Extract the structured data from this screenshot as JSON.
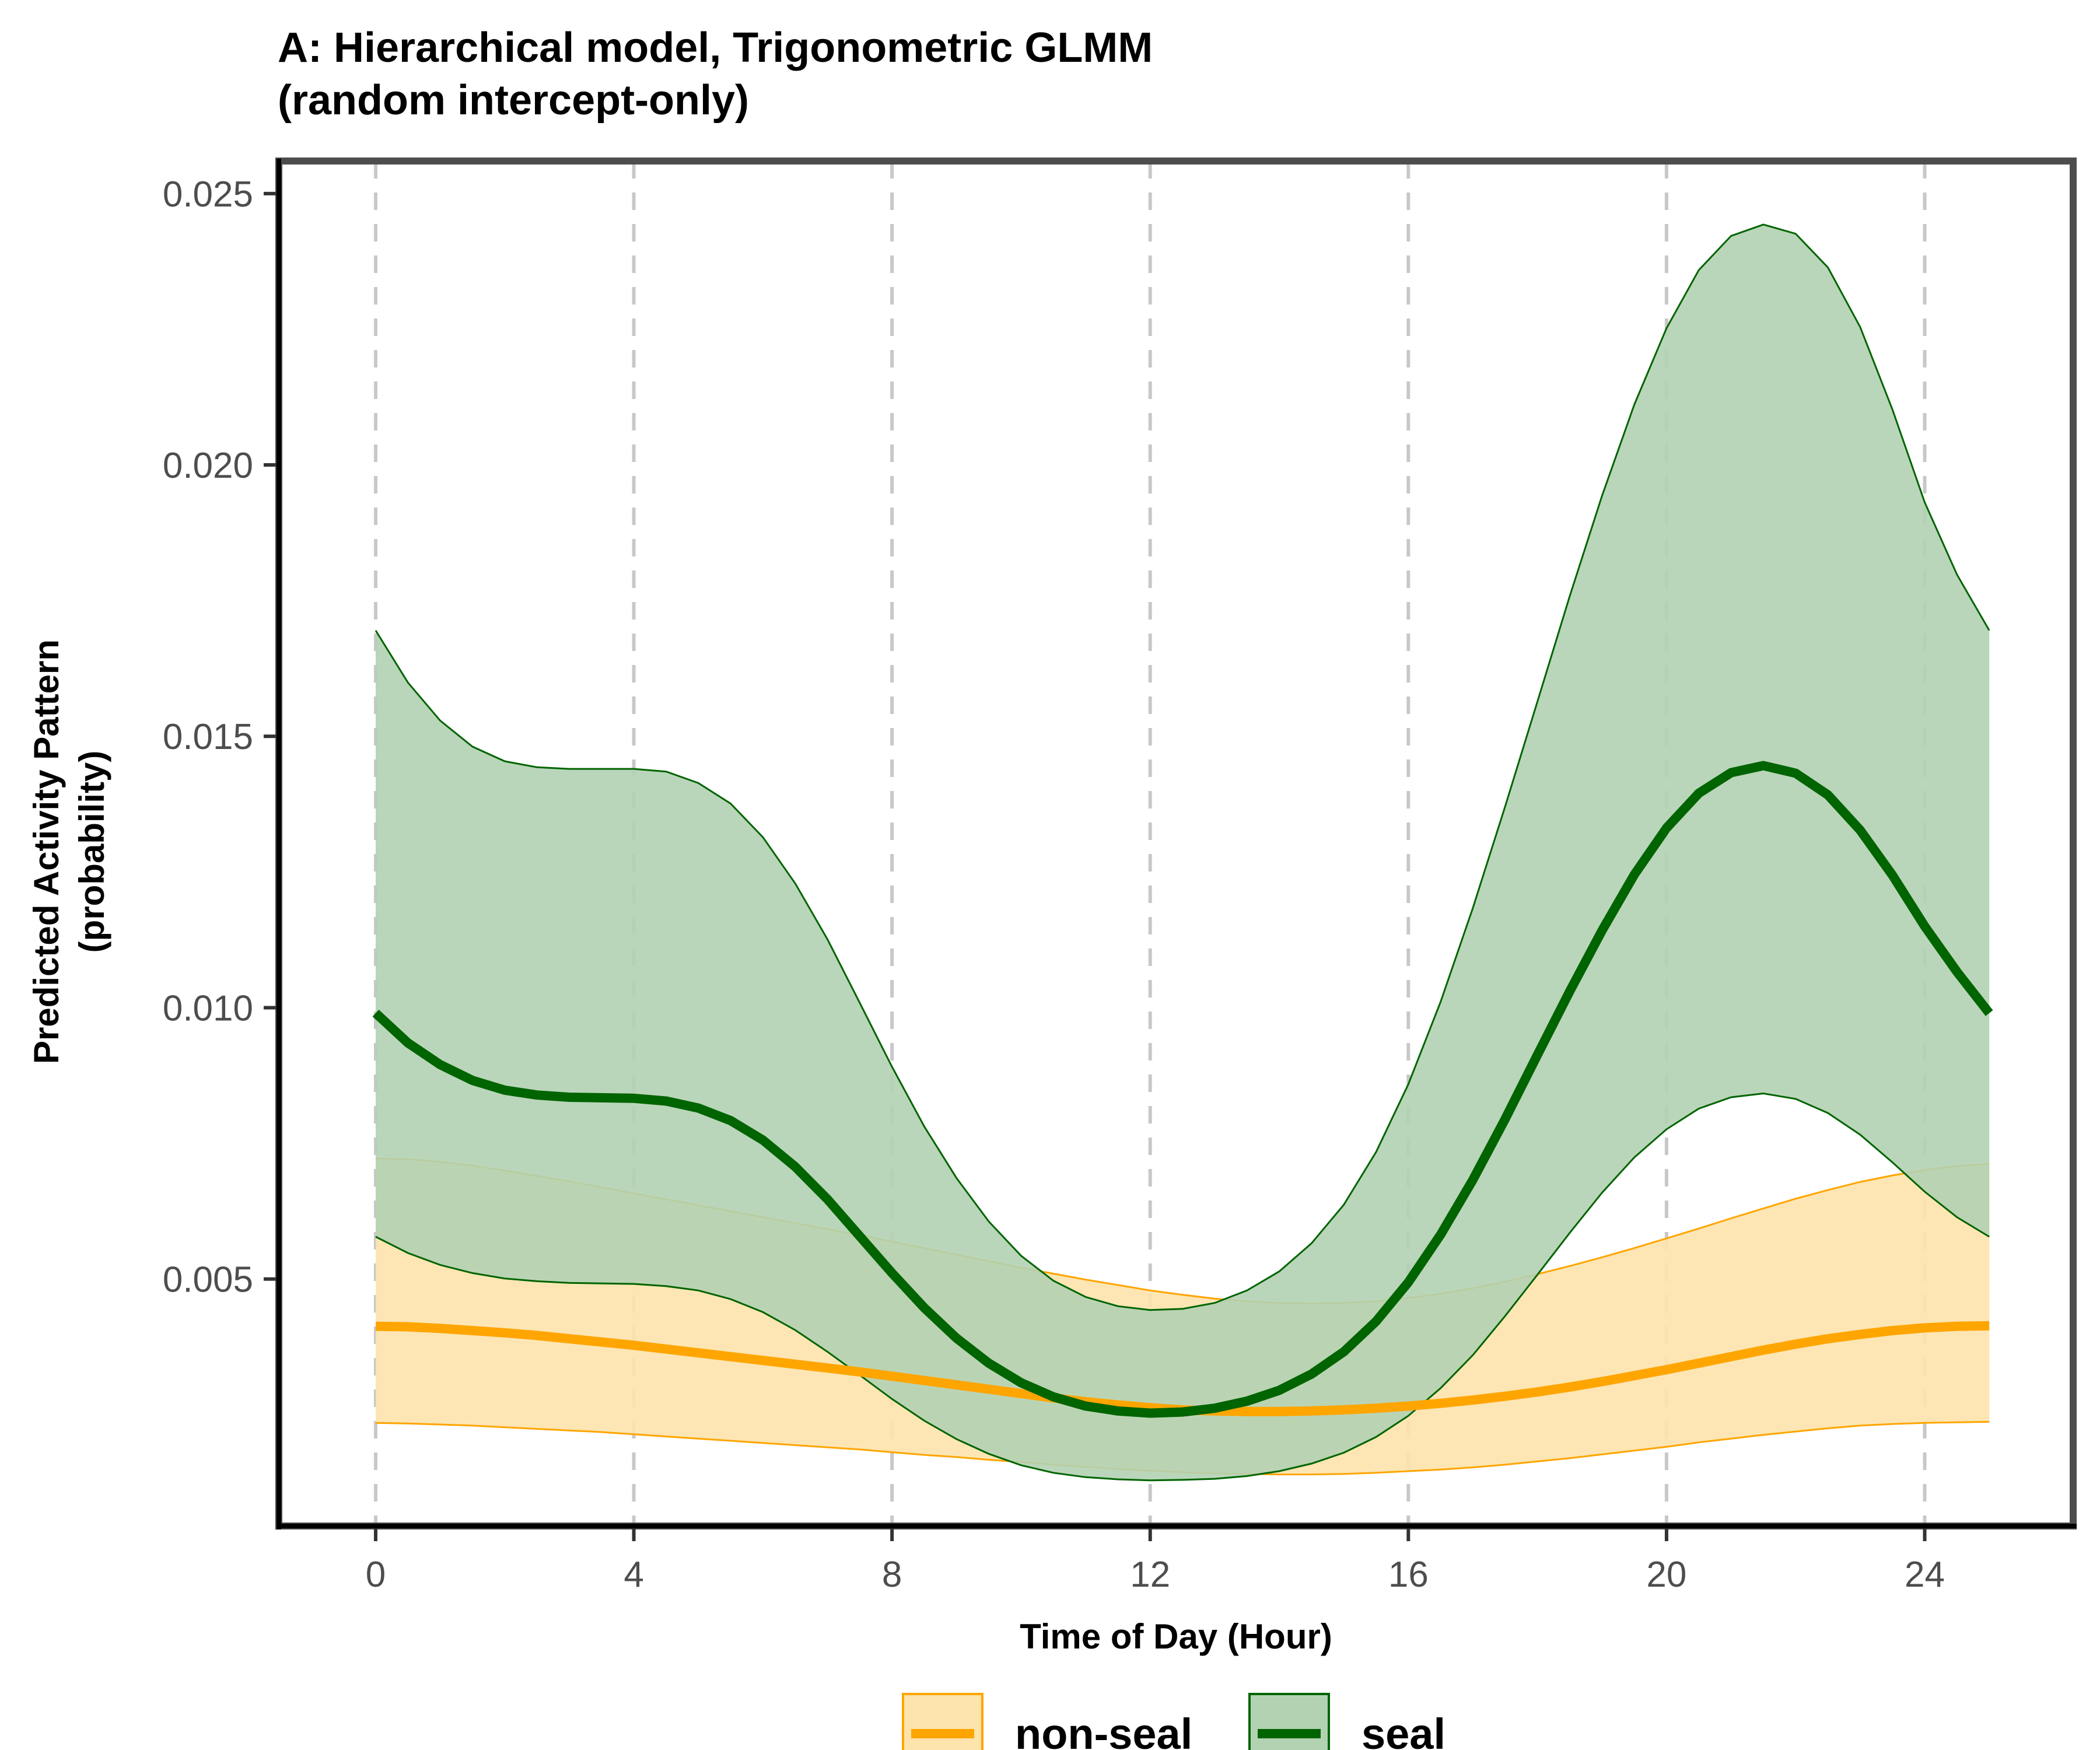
{
  "chart_data": {
    "type": "line",
    "title": "A: Hierarchical model, Trigonometric GLMM",
    "subtitle": "(random intercept-only)",
    "xlabel": "Time of Day (Hour)",
    "ylabel": "Predicted Activity Pattern",
    "ylabel2": "(probability)",
    "xlim": [
      -1.5,
      26.3
    ],
    "ylim": [
      0.00045,
      0.0256
    ],
    "x_ticks": [
      0,
      4,
      8,
      12,
      16,
      20,
      24
    ],
    "x_tick_labels": [
      "0",
      "4",
      "8",
      "12",
      "16",
      "20",
      "24"
    ],
    "y_ticks": [
      0.005,
      0.01,
      0.015,
      0.02,
      0.025
    ],
    "y_tick_labels": [
      "0.005",
      "0.010",
      "0.015",
      "0.020",
      "0.025"
    ],
    "grid": "vertical dashed at x ticks",
    "legend_position": "bottom",
    "x": [
      0,
      0.5,
      1,
      1.5,
      2,
      2.5,
      3,
      3.5,
      4,
      4.5,
      5,
      5.5,
      6,
      6.5,
      7,
      7.5,
      8,
      8.5,
      9,
      9.5,
      10,
      10.5,
      11,
      11.5,
      12,
      12.5,
      13,
      13.5,
      14,
      14.5,
      15,
      15.5,
      16,
      16.5,
      17,
      17.5,
      18,
      18.5,
      19,
      19.5,
      20,
      20.5,
      21,
      21.5,
      22,
      22.5,
      23,
      23.5,
      24,
      24.5,
      25
    ],
    "series": [
      {
        "name": "non-seal",
        "color": "#FFA500",
        "fill": "#FDE3AC",
        "values": [
          0.00413,
          0.00412,
          0.00409,
          0.00405,
          0.00401,
          0.00396,
          0.0039,
          0.00384,
          0.00378,
          0.00371,
          0.00364,
          0.00357,
          0.0035,
          0.00343,
          0.00336,
          0.00329,
          0.00321,
          0.00313,
          0.00305,
          0.00297,
          0.00289,
          0.00281,
          0.00274,
          0.00268,
          0.00263,
          0.00259,
          0.00257,
          0.00256,
          0.00256,
          0.00257,
          0.00259,
          0.00262,
          0.00266,
          0.00271,
          0.00277,
          0.00284,
          0.00292,
          0.00301,
          0.00311,
          0.00322,
          0.00333,
          0.00345,
          0.00357,
          0.00369,
          0.0038,
          0.0039,
          0.00398,
          0.00405,
          0.0041,
          0.00413,
          0.00414
        ],
        "lower": [
          0.00235,
          0.00234,
          0.00232,
          0.0023,
          0.00227,
          0.00224,
          0.00221,
          0.00218,
          0.00214,
          0.0021,
          0.00206,
          0.00202,
          0.00198,
          0.00194,
          0.0019,
          0.00186,
          0.00181,
          0.00176,
          0.00172,
          0.00167,
          0.00163,
          0.00158,
          0.00154,
          0.0015,
          0.00147,
          0.00144,
          0.00142,
          0.00141,
          0.0014,
          0.0014,
          0.00141,
          0.00143,
          0.00146,
          0.00149,
          0.00153,
          0.00158,
          0.00164,
          0.0017,
          0.00177,
          0.00184,
          0.00191,
          0.00199,
          0.00206,
          0.00213,
          0.00219,
          0.00225,
          0.0023,
          0.00233,
          0.00235,
          0.00236,
          0.00237
        ],
        "upper": [
          0.00722,
          0.00721,
          0.00716,
          0.00709,
          0.007,
          0.0069,
          0.0068,
          0.00669,
          0.00658,
          0.00647,
          0.00636,
          0.00625,
          0.00614,
          0.00603,
          0.00592,
          0.00581,
          0.00569,
          0.00557,
          0.00545,
          0.00533,
          0.00521,
          0.0051,
          0.00499,
          0.00489,
          0.00479,
          0.00471,
          0.00464,
          0.00459,
          0.00456,
          0.00455,
          0.00456,
          0.00459,
          0.00465,
          0.00473,
          0.00483,
          0.00495,
          0.00509,
          0.00524,
          0.0054,
          0.00557,
          0.00575,
          0.00593,
          0.00612,
          0.0063,
          0.00648,
          0.00664,
          0.00679,
          0.00691,
          0.00701,
          0.00708,
          0.00712
        ]
      },
      {
        "name": "seal",
        "color": "#006400",
        "fill": "#B2D2B2",
        "values": [
          0.0099,
          0.00935,
          0.00895,
          0.00866,
          0.00848,
          0.00839,
          0.00835,
          0.00834,
          0.00833,
          0.00828,
          0.00815,
          0.00792,
          0.00756,
          0.00707,
          0.00647,
          0.00579,
          0.00511,
          0.00447,
          0.00391,
          0.00345,
          0.00309,
          0.00283,
          0.00266,
          0.00257,
          0.00253,
          0.00255,
          0.00262,
          0.00275,
          0.00295,
          0.00325,
          0.00366,
          0.00422,
          0.00494,
          0.00582,
          0.00683,
          0.00795,
          0.00913,
          0.0103,
          0.01142,
          0.01245,
          0.01331,
          0.01395,
          0.01433,
          0.01446,
          0.01432,
          0.01392,
          0.01327,
          0.01244,
          0.0115,
          0.01066,
          0.0099
        ],
        "lower": [
          0.00578,
          0.00548,
          0.00526,
          0.00511,
          0.00501,
          0.00496,
          0.00493,
          0.00492,
          0.00491,
          0.00487,
          0.00479,
          0.00463,
          0.00439,
          0.00406,
          0.00366,
          0.00323,
          0.00279,
          0.00239,
          0.00205,
          0.00178,
          0.00157,
          0.00143,
          0.00135,
          0.00131,
          0.00129,
          0.0013,
          0.00132,
          0.00137,
          0.00146,
          0.0016,
          0.0018,
          0.00209,
          0.00248,
          0.00299,
          0.0036,
          0.00432,
          0.00508,
          0.00585,
          0.00659,
          0.00724,
          0.00776,
          0.00814,
          0.00835,
          0.00842,
          0.00832,
          0.00806,
          0.00766,
          0.00715,
          0.00661,
          0.00614,
          0.00578
        ],
        "upper": [
          0.01695,
          0.01599,
          0.01529,
          0.01481,
          0.01454,
          0.01443,
          0.0144,
          0.0144,
          0.0144,
          0.01435,
          0.01414,
          0.01376,
          0.01314,
          0.01229,
          0.01126,
          0.01009,
          0.00891,
          0.00781,
          0.00686,
          0.00606,
          0.00543,
          0.00497,
          0.00467,
          0.0045,
          0.00443,
          0.00445,
          0.00456,
          0.00479,
          0.00514,
          0.00566,
          0.00637,
          0.00734,
          0.00859,
          0.01011,
          0.01184,
          0.01371,
          0.01564,
          0.01758,
          0.01943,
          0.02111,
          0.02252,
          0.02359,
          0.02422,
          0.02443,
          0.02426,
          0.02364,
          0.02254,
          0.02102,
          0.01931,
          0.01798,
          0.01695
        ]
      }
    ]
  }
}
